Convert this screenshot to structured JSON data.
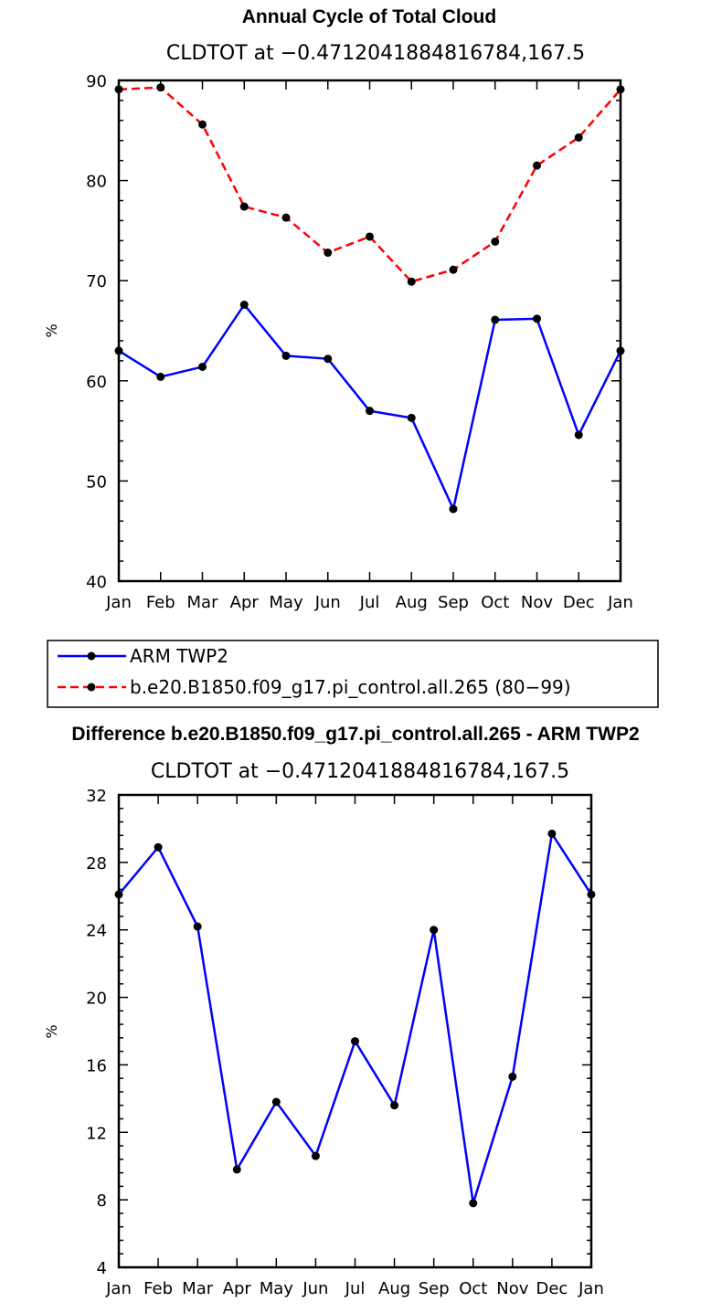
{
  "chart_data": [
    {
      "type": "line",
      "title": "Annual Cycle of Total Cloud",
      "subtitle": "CLDTOT at −0.4712041884816784,167.5",
      "xlabel": "",
      "ylabel": "%",
      "categories": [
        "Jan",
        "Feb",
        "Mar",
        "Apr",
        "May",
        "Jun",
        "Jul",
        "Aug",
        "Sep",
        "Oct",
        "Nov",
        "Dec",
        "Jan"
      ],
      "ylim": [
        40,
        90
      ],
      "yticks": [
        40,
        50,
        60,
        70,
        80,
        90
      ],
      "grid": false,
      "legend_position": "bottom",
      "series": [
        {
          "name": "ARM TWP2",
          "color": "#0000ff",
          "dash": "solid",
          "values": [
            63.0,
            60.4,
            61.4,
            67.6,
            62.5,
            62.2,
            57.0,
            56.3,
            47.2,
            66.1,
            66.2,
            54.6,
            63.0
          ]
        },
        {
          "name": "b.e20.B1850.f09_g17.pi_control.all.265 (80−99)",
          "color": "#ff0000",
          "dash": "dashed",
          "values": [
            89.1,
            89.3,
            85.6,
            77.4,
            76.3,
            72.8,
            74.4,
            69.9,
            71.1,
            73.9,
            81.5,
            84.3,
            89.1
          ]
        }
      ]
    },
    {
      "type": "line",
      "title": "Difference b.e20.B1850.f09_g17.pi_control.all.265 - ARM TWP2",
      "subtitle": "CLDTOT at −0.4712041884816784,167.5",
      "xlabel": "",
      "ylabel": "%",
      "categories": [
        "Jan",
        "Feb",
        "Mar",
        "Apr",
        "May",
        "Jun",
        "Jul",
        "Aug",
        "Sep",
        "Oct",
        "Nov",
        "Dec",
        "Jan"
      ],
      "ylim": [
        4,
        32
      ],
      "yticks": [
        4,
        8,
        12,
        16,
        20,
        24,
        28,
        32
      ],
      "grid": false,
      "series": [
        {
          "name": "Difference",
          "color": "#0000ff",
          "dash": "solid",
          "values": [
            26.1,
            28.9,
            24.2,
            9.8,
            13.8,
            10.6,
            17.4,
            13.6,
            24.0,
            7.8,
            15.3,
            29.7,
            26.1
          ]
        }
      ]
    }
  ]
}
